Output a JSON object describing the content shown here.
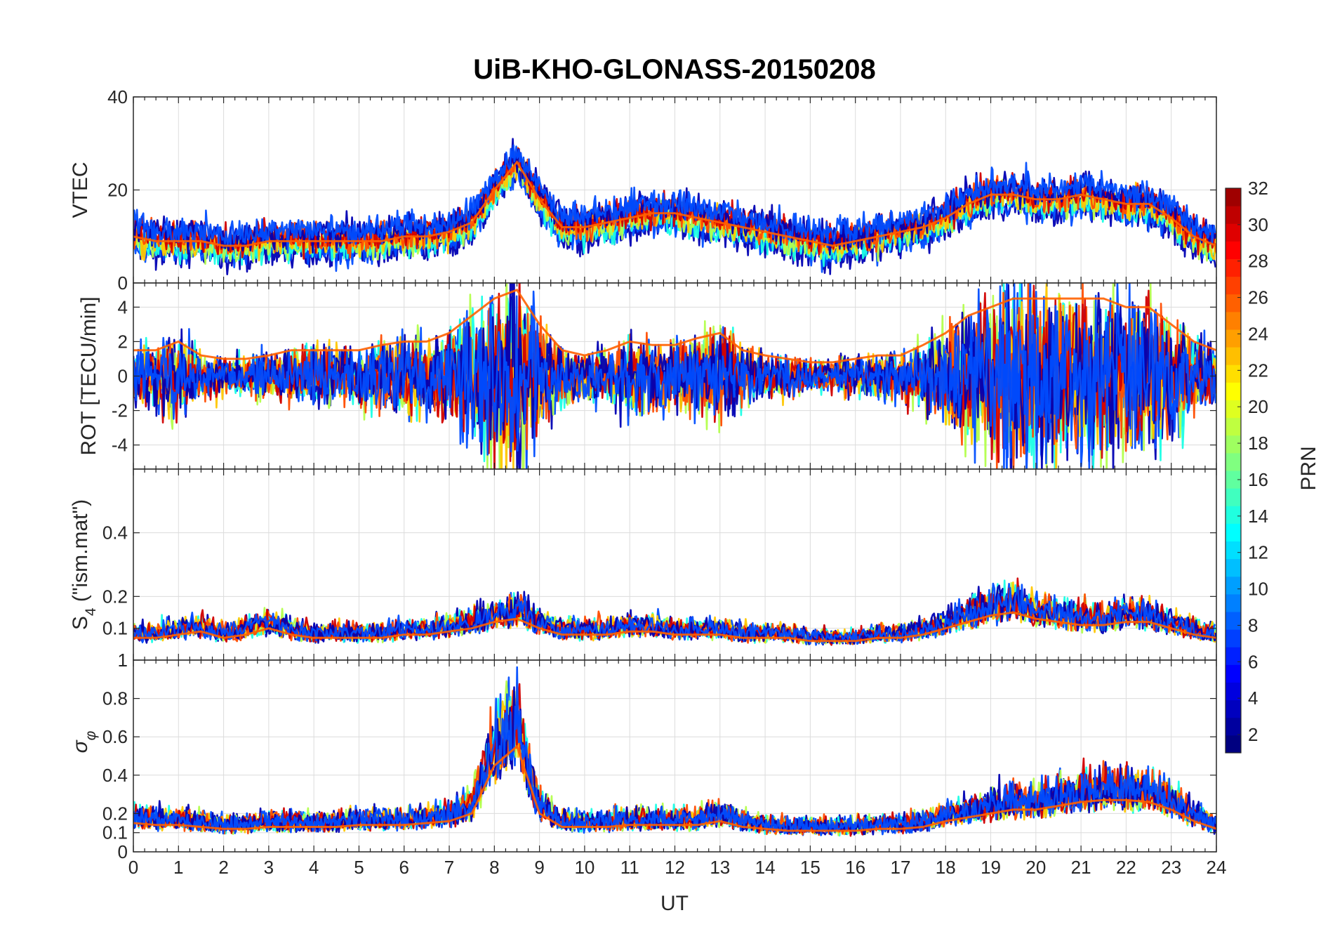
{
  "chart_data": {
    "type": "line",
    "title": "UiB-KHO-GLONASS-20150208",
    "xlabel": "UT",
    "xlim": [
      0,
      24
    ],
    "x_ticks": [
      "0",
      "1",
      "2",
      "3",
      "4",
      "5",
      "6",
      "7",
      "8",
      "9",
      "10",
      "11",
      "12",
      "13",
      "14",
      "15",
      "16",
      "17",
      "18",
      "19",
      "20",
      "21",
      "22",
      "23",
      "24"
    ],
    "grid": true,
    "colorbar": {
      "label": "PRN",
      "colormap": "jet",
      "range": [
        1,
        32
      ],
      "ticks": [
        "2",
        "4",
        "6",
        "8",
        "10",
        "12",
        "14",
        "16",
        "18",
        "20",
        "22",
        "24",
        "26",
        "28",
        "30",
        "32"
      ]
    },
    "panels": [
      {
        "ylabel": "VTEC",
        "ylim": [
          0,
          40
        ],
        "y_ticks": [
          "0",
          "20",
          "40"
        ],
        "envelope": {
          "x": [
            0,
            0.5,
            1,
            1.5,
            2,
            2.5,
            3,
            3.5,
            4,
            4.5,
            5,
            5.5,
            6,
            6.5,
            7,
            7.5,
            8,
            8.5,
            9,
            9.5,
            10,
            10.5,
            11,
            11.5,
            12,
            12.5,
            13,
            13.5,
            14,
            14.5,
            15,
            15.5,
            16,
            16.5,
            17,
            17.5,
            18,
            18.5,
            19,
            19.5,
            20,
            20.5,
            21,
            21.5,
            22,
            22.5,
            23,
            23.5,
            24
          ],
          "y": [
            10,
            9,
            9,
            9,
            8,
            8,
            9,
            9,
            9,
            9,
            9,
            9,
            10,
            10,
            11,
            13,
            20,
            26,
            18,
            12,
            12,
            13,
            14,
            15,
            15,
            14,
            13,
            12,
            11,
            10,
            9,
            8,
            9,
            10,
            11,
            12,
            14,
            17,
            19,
            19,
            18,
            18,
            19,
            18,
            17,
            17,
            14,
            10,
            8
          ]
        }
      },
      {
        "ylabel": "ROT [TECU/min]",
        "ylim": [
          -5.4,
          5.4
        ],
        "y_ticks": [
          "-4",
          "-2",
          "0",
          "2",
          "4"
        ],
        "envelope": {
          "x": [
            0,
            0.5,
            1,
            1.5,
            2,
            2.5,
            3,
            3.5,
            4,
            4.5,
            5,
            5.5,
            6,
            6.5,
            7,
            7.5,
            8,
            8.5,
            9,
            9.5,
            10,
            10.5,
            11,
            11.5,
            12,
            12.5,
            13,
            13.5,
            14,
            14.5,
            15,
            15.5,
            16,
            16.5,
            17,
            17.5,
            18,
            18.5,
            19,
            19.5,
            20,
            20.5,
            21,
            21.5,
            22,
            22.5,
            23,
            23.5,
            24
          ],
          "y": [
            1.5,
            1.5,
            2,
            1.2,
            1,
            1,
            1.2,
            1.5,
            1.5,
            1.5,
            1.5,
            1.8,
            2,
            2,
            2.5,
            3.5,
            4.5,
            5,
            3,
            1.5,
            1.2,
            1.5,
            2,
            1.8,
            1.8,
            2.2,
            2.5,
            1.5,
            1.2,
            1,
            0.8,
            0.8,
            1,
            1.2,
            1.2,
            1.8,
            2.5,
            3.5,
            4,
            4.5,
            4.5,
            4.5,
            4.5,
            4.5,
            4,
            4,
            3,
            2,
            1.5
          ]
        }
      },
      {
        "ylabel": "S4 (\"ism.mat\")",
        "ylim": [
          0,
          0.6
        ],
        "y_ticks": [
          "0.1",
          "0.2",
          "0.4"
        ],
        "envelope": {
          "x": [
            0,
            0.5,
            1,
            1.5,
            2,
            2.5,
            3,
            3.5,
            4,
            4.5,
            5,
            5.5,
            6,
            6.5,
            7,
            7.5,
            8,
            8.5,
            9,
            9.5,
            10,
            10.5,
            11,
            11.5,
            12,
            12.5,
            13,
            13.5,
            14,
            14.5,
            15,
            15.5,
            16,
            16.5,
            17,
            17.5,
            18,
            18.5,
            19,
            19.5,
            20,
            20.5,
            21,
            21.5,
            22,
            22.5,
            23,
            23.5,
            24
          ],
          "y": [
            0.07,
            0.07,
            0.08,
            0.09,
            0.07,
            0.08,
            0.1,
            0.08,
            0.07,
            0.07,
            0.07,
            0.07,
            0.08,
            0.08,
            0.09,
            0.1,
            0.12,
            0.13,
            0.1,
            0.08,
            0.08,
            0.08,
            0.09,
            0.09,
            0.08,
            0.08,
            0.08,
            0.07,
            0.07,
            0.07,
            0.06,
            0.06,
            0.06,
            0.07,
            0.07,
            0.08,
            0.1,
            0.12,
            0.14,
            0.15,
            0.13,
            0.12,
            0.11,
            0.11,
            0.12,
            0.12,
            0.1,
            0.08,
            0.07
          ]
        }
      },
      {
        "ylabel": "σφ",
        "ylim": [
          0,
          1
        ],
        "y_ticks": [
          "0",
          "0.1",
          "0.2",
          "0.4",
          "0.6",
          "0.8",
          "1"
        ],
        "envelope": {
          "x": [
            0,
            0.5,
            1,
            1.5,
            2,
            2.5,
            3,
            3.5,
            4,
            4.5,
            5,
            5.5,
            6,
            6.5,
            7,
            7.5,
            8,
            8.5,
            9,
            9.5,
            10,
            10.5,
            11,
            11.5,
            12,
            12.5,
            13,
            13.5,
            14,
            14.5,
            15,
            15.5,
            16,
            16.5,
            17,
            17.5,
            18,
            18.5,
            19,
            19.5,
            20,
            20.5,
            21,
            21.5,
            22,
            22.5,
            23,
            23.5,
            24
          ],
          "y": [
            0.15,
            0.14,
            0.14,
            0.13,
            0.12,
            0.12,
            0.13,
            0.13,
            0.13,
            0.13,
            0.14,
            0.14,
            0.14,
            0.15,
            0.16,
            0.2,
            0.45,
            0.55,
            0.2,
            0.13,
            0.13,
            0.13,
            0.14,
            0.14,
            0.14,
            0.14,
            0.16,
            0.13,
            0.12,
            0.11,
            0.11,
            0.11,
            0.11,
            0.12,
            0.12,
            0.13,
            0.16,
            0.18,
            0.2,
            0.22,
            0.22,
            0.24,
            0.26,
            0.27,
            0.27,
            0.26,
            0.22,
            0.16,
            0.12
          ]
        }
      }
    ]
  }
}
